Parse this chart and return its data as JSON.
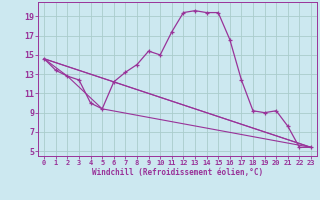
{
  "xlabel": "Windchill (Refroidissement éolien,°C)",
  "background_color": "#cce8f0",
  "grid_color": "#aacccc",
  "line_color": "#993399",
  "xlim": [
    -0.5,
    23.5
  ],
  "ylim": [
    4.5,
    20.5
  ],
  "xticks": [
    0,
    1,
    2,
    3,
    4,
    5,
    6,
    7,
    8,
    9,
    10,
    11,
    12,
    13,
    14,
    15,
    16,
    17,
    18,
    19,
    20,
    21,
    22,
    23
  ],
  "yticks": [
    5,
    7,
    9,
    11,
    13,
    15,
    17,
    19
  ],
  "main_series": {
    "x": [
      0,
      1,
      2,
      3,
      4,
      5,
      6,
      7,
      8,
      9,
      10,
      11,
      12,
      13,
      14,
      15,
      16,
      17,
      18,
      19,
      20,
      21,
      22,
      23
    ],
    "y": [
      14.6,
      13.4,
      12.8,
      12.4,
      10.0,
      9.4,
      12.2,
      13.2,
      14.0,
      15.4,
      15.0,
      17.4,
      19.4,
      19.6,
      19.4,
      19.4,
      16.6,
      12.4,
      9.2,
      9.0,
      9.2,
      7.6,
      5.4,
      5.4
    ]
  },
  "straight_lines": [
    {
      "x": [
        0,
        23
      ],
      "y": [
        14.6,
        5.4
      ]
    },
    {
      "x": [
        0,
        6,
        23
      ],
      "y": [
        14.6,
        12.2,
        5.4
      ]
    },
    {
      "x": [
        0,
        2,
        5,
        23
      ],
      "y": [
        14.6,
        12.8,
        9.4,
        5.4
      ]
    }
  ]
}
